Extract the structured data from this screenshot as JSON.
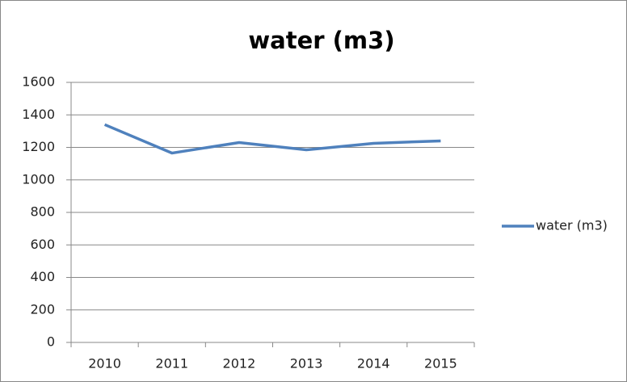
{
  "chart_data": {
    "type": "line",
    "title": "water (m3)",
    "categories": [
      "2010",
      "2011",
      "2012",
      "2013",
      "2014",
      "2015"
    ],
    "series": [
      {
        "name": "water (m3)",
        "color": "#4f81bd",
        "values": [
          1340,
          1165,
          1230,
          1185,
          1225,
          1240
        ]
      }
    ],
    "ylim": [
      0,
      1600
    ],
    "yticks": [
      0,
      200,
      400,
      600,
      800,
      1000,
      1200,
      1400,
      1600
    ],
    "grid": true,
    "legend": "right"
  }
}
